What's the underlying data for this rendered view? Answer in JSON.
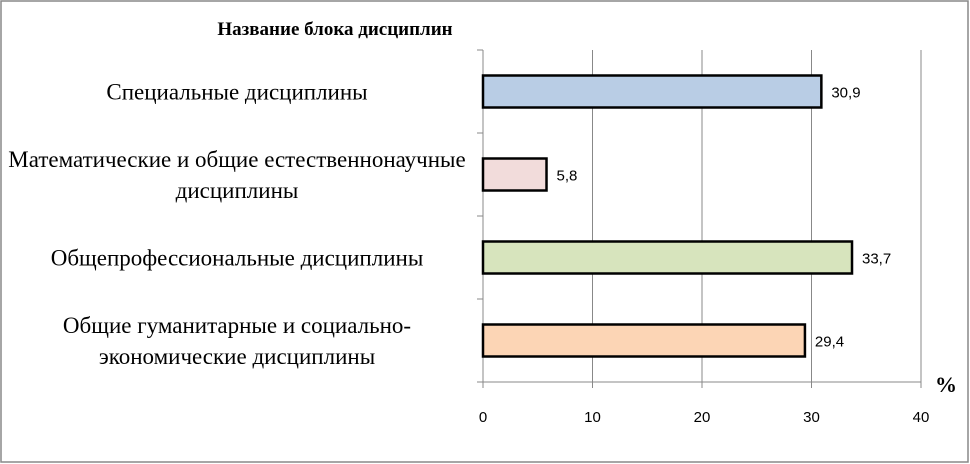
{
  "chart_data": {
    "type": "barh",
    "y_axis_title": "Название блока дисциплин",
    "x_axis_title": "%",
    "categories": [
      "Специальные дисциплины",
      "Математические и общие естественнонаучные дисциплины",
      "Общепрофессиональные дисциплины",
      "Общие гуманитарные и социально-экономические дисциплины"
    ],
    "values": [
      30.9,
      5.8,
      33.7,
      29.4
    ],
    "value_labels": [
      "30,9",
      "5,8",
      "33,7",
      "29,4"
    ],
    "colors": [
      "#b9cde5",
      "#f2dcdb",
      "#d7e4bd",
      "#fcd5b5"
    ],
    "xlim": [
      0,
      40
    ],
    "xticks": [
      0,
      10,
      20,
      30,
      40
    ],
    "grid": true
  }
}
